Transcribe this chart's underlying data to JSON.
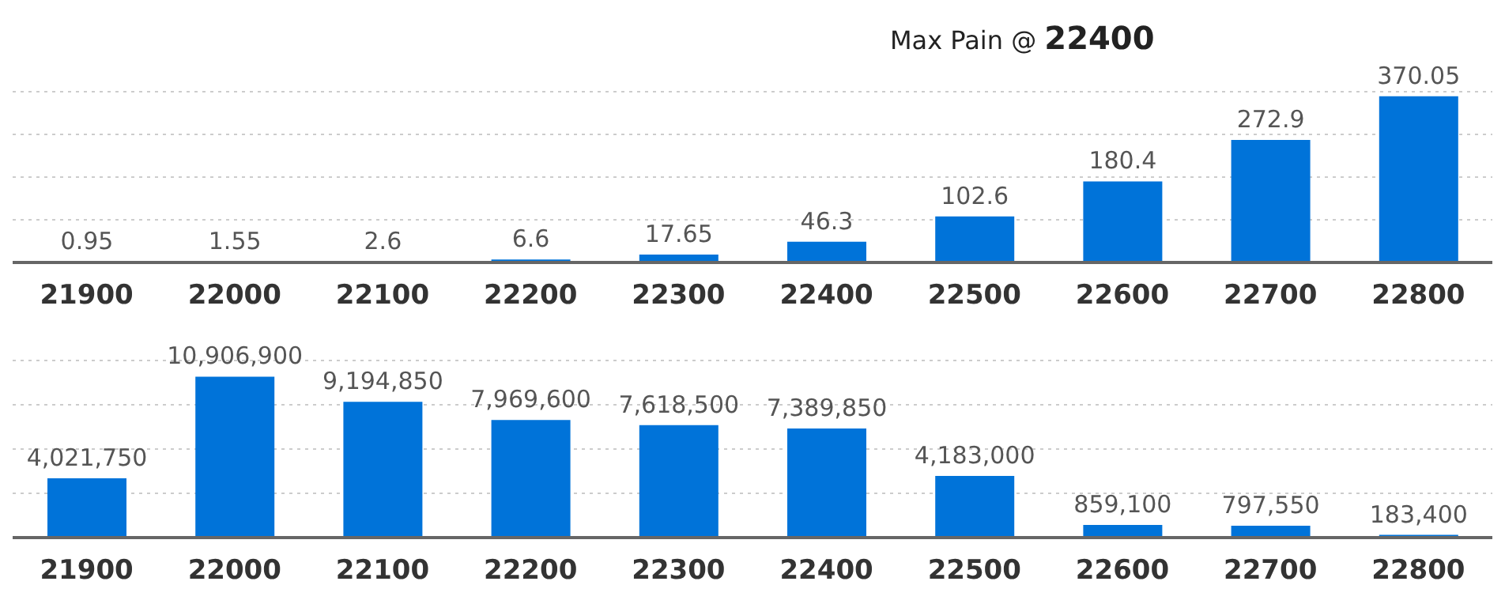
{
  "chart_data": [
    {
      "type": "bar",
      "title": "Max Pain @ 22400",
      "categories": [
        "21900",
        "22000",
        "22100",
        "22200",
        "22300",
        "22400",
        "22500",
        "22600",
        "22700",
        "22800"
      ],
      "values": [
        0.95,
        1.55,
        2.6,
        6.6,
        17.65,
        46.3,
        102.6,
        180.4,
        272.9,
        370.05
      ],
      "color": "#0073d9",
      "data_labels": true,
      "grid": "y"
    },
    {
      "type": "bar",
      "categories": [
        "21900",
        "22000",
        "22100",
        "22200",
        "22300",
        "22400",
        "22500",
        "22600",
        "22700",
        "22800"
      ],
      "values": [
        4021750,
        10906900,
        9194850,
        7969600,
        7618500,
        7389850,
        4183000,
        859100,
        797550,
        183400
      ],
      "color": "#0073d9",
      "grid": "y",
      "value_labels": [
        "4,021,750",
        "10,906,900",
        "9,194,850",
        "7,969,600",
        "7,618,500",
        "7,389,850",
        "4,183,000",
        "859,100",
        "797,550",
        "183,400"
      ]
    }
  ]
}
